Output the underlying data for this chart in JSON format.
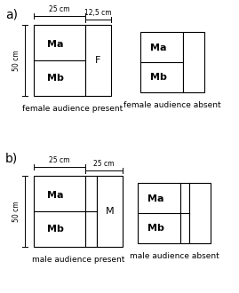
{
  "fig_width": 2.69,
  "fig_height": 3.3,
  "bg_color": "#ffffff",
  "text_color": "#000000",
  "line_color": "#000000",
  "panel_a_label": "a)",
  "panel_b_label": "b)",
  "label_female_present": "female audience present",
  "label_female_absent": "female audience absent",
  "label_male_present": "male audience present",
  "label_male_absent": "male audience absent",
  "Ma_label": "Ma",
  "Mb_label": "Mb",
  "F_label": "F",
  "M_label": "M",
  "dim_25_a": "25 cm",
  "dim_125_a": "12,5 cm",
  "dim_25_b1": "25 cm",
  "dim_25_b2": "25 cm",
  "dim_50": "50 cm",
  "font_size_panel": 10,
  "font_size_caption": 6.5,
  "font_size_cell": 8,
  "font_size_dim": 5.5
}
